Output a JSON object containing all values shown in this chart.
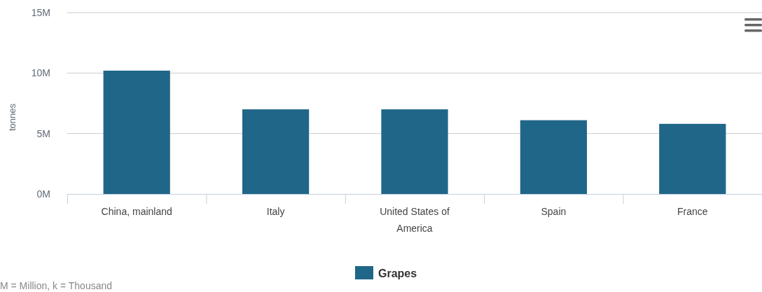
{
  "chart_data": {
    "type": "bar",
    "ylabel": "tonnes",
    "categories": [
      "China, mainland",
      "Italy",
      "United States of America",
      "Spain",
      "France"
    ],
    "series": [
      {
        "name": "Grapes",
        "color": "#206689",
        "values": [
          10.2,
          7.0,
          7.0,
          6.1,
          5.8
        ]
      }
    ],
    "ylim": [
      0,
      15
    ],
    "yticks": [
      {
        "value": 0,
        "label": "0M"
      },
      {
        "value": 5,
        "label": "5M"
      },
      {
        "value": 10,
        "label": "10M"
      },
      {
        "value": 15,
        "label": "15M"
      }
    ],
    "grid": "y",
    "legend": "bottom",
    "annotations": [
      "M = Million, k = Thousand"
    ]
  }
}
